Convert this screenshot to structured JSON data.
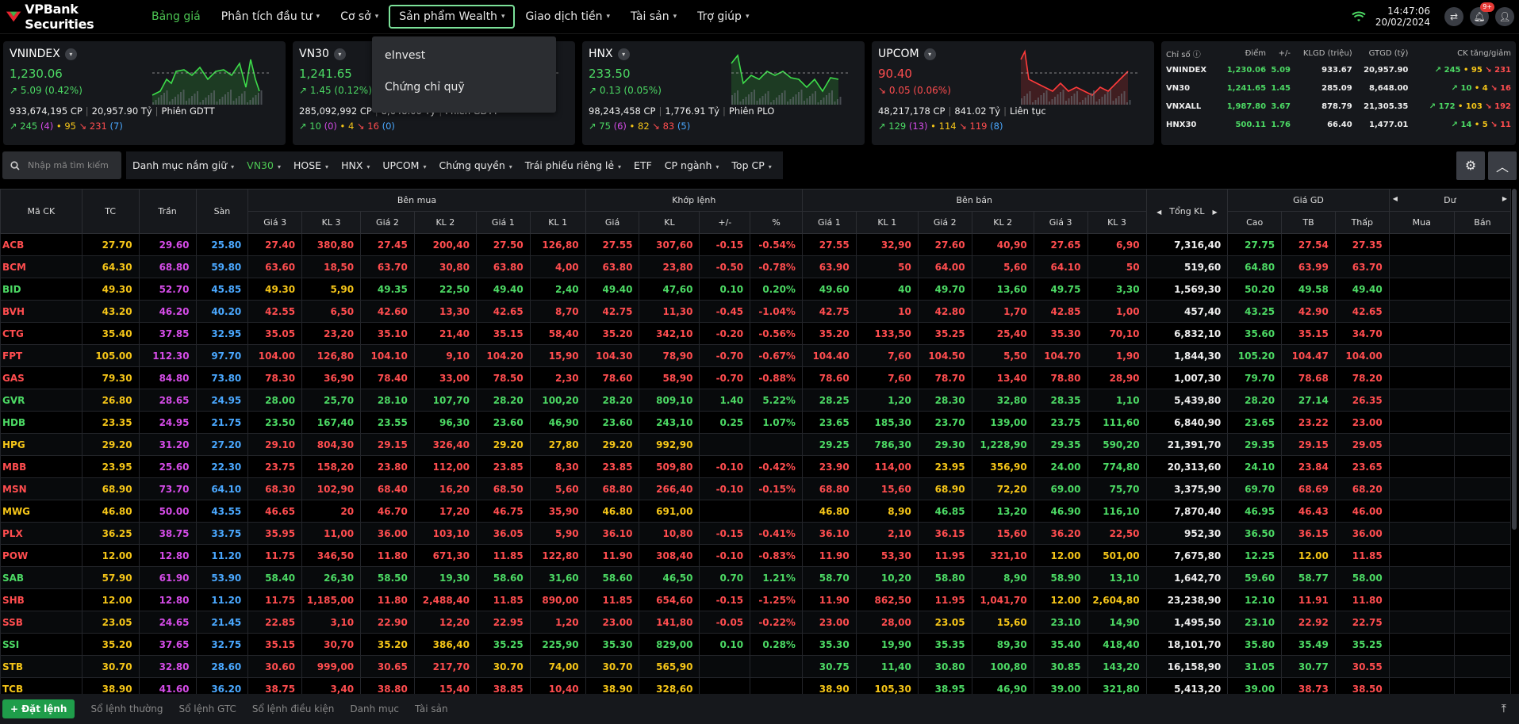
{
  "app": {
    "brand": "VPBank Securities",
    "time": "14:47:06",
    "date": "20/02/2024",
    "notif_badge": "9+"
  },
  "nav": [
    {
      "label": "Bảng giá",
      "active": true,
      "chev": false
    },
    {
      "label": "Phân tích đầu tư",
      "chev": true
    },
    {
      "label": "Cơ sở",
      "chev": true
    },
    {
      "label": "Sản phẩm Wealth",
      "chev": true,
      "open": true
    },
    {
      "label": "Giao dịch tiền",
      "chev": true
    },
    {
      "label": "Tài sản",
      "chev": true
    },
    {
      "label": "Trợ giúp",
      "chev": true
    }
  ],
  "dropdown": [
    "eInvest",
    "Chứng chỉ quỹ"
  ],
  "indices": [
    {
      "name": "VNINDEX",
      "value": "1,230.06",
      "change": "5.09 (0.42%)",
      "dir": "up",
      "vol": "933,674,195 CP",
      "val": "20,957.90 Tỷ",
      "session": "Phiên GDTT",
      "adv": "245",
      "adv_c": "(4)",
      "same": "95",
      "dec": "231",
      "dec_c": "(7)"
    },
    {
      "name": "VN30",
      "value": "1,241.65",
      "change": "1.45 (0.12%)",
      "dir": "up",
      "vol": "285,092,992 CP",
      "val": "8,648.00 Tỷ",
      "session": "Phiên GDTT",
      "adv": "10",
      "adv_c": "(0)",
      "same": "4",
      "dec": "16",
      "dec_c": "(0)"
    },
    {
      "name": "HNX",
      "value": "233.50",
      "change": "0.13 (0.05%)",
      "dir": "up",
      "vol": "98,243,458 CP",
      "val": "1,776.91 Tỷ",
      "session": "Phiên PLO",
      "adv": "75",
      "adv_c": "(6)",
      "same": "82",
      "dec": "83",
      "dec_c": "(5)"
    },
    {
      "name": "UPCOM",
      "value": "90.40",
      "change": "0.05 (0.06%)",
      "dir": "dn",
      "vol": "48,217,178 CP",
      "val": "841.02 Tỷ",
      "session": "Liên tục",
      "adv": "129",
      "adv_c": "(13)",
      "same": "114",
      "dec": "119",
      "dec_c": "(8)"
    }
  ],
  "summary": {
    "headers": [
      "Chỉ số",
      "Điểm",
      "+/-",
      "KLGD (triệu)",
      "GTGD (tỷ)",
      "CK tăng/giảm"
    ],
    "rows": [
      {
        "name": "VNINDEX",
        "point": "1,230.06",
        "chg": "5.09",
        "kl": "933.67",
        "gt": "20,957.90",
        "adv": "245",
        "same": "95",
        "dec": "231"
      },
      {
        "name": "VN30",
        "point": "1,241.65",
        "chg": "1.45",
        "kl": "285.09",
        "gt": "8,648.00",
        "adv": "10",
        "same": "4",
        "dec": "16"
      },
      {
        "name": "VNXALL",
        "point": "1,987.80",
        "chg": "3.67",
        "kl": "878.79",
        "gt": "21,305.35",
        "adv": "172",
        "same": "103",
        "dec": "192"
      },
      {
        "name": "HNX30",
        "point": "500.11",
        "chg": "1.76",
        "kl": "66.40",
        "gt": "1,477.01",
        "adv": "14",
        "same": "5",
        "dec": "11"
      }
    ]
  },
  "search": {
    "placeholder": "Nhập mã tìm kiếm"
  },
  "filters": [
    {
      "label": "Danh mục nắm giữ",
      "chev": true
    },
    {
      "label": "VN30",
      "chev": true,
      "active": true
    },
    {
      "label": "HOSE",
      "chev": true
    },
    {
      "label": "HNX",
      "chev": true
    },
    {
      "label": "UPCOM",
      "chev": true
    },
    {
      "label": "Chứng quyền",
      "chev": true
    },
    {
      "label": "Trái phiếu riêng lẻ",
      "chev": true
    },
    {
      "label": "ETF",
      "chev": false
    },
    {
      "label": "CP ngành",
      "chev": true
    },
    {
      "label": "Top CP",
      "chev": true
    }
  ],
  "board": {
    "groups": {
      "sym": "Mã CK",
      "tc": "TC",
      "ceil": "Trần",
      "floor": "Sàn",
      "buy": "Bên mua",
      "match": "Khớp lệnh",
      "sell": "Bên bán",
      "total": "Tổng KL",
      "price": "Giá GD",
      "foreign": "Dư"
    },
    "sub": [
      "Giá 3",
      "KL 3",
      "Giá 2",
      "KL 2",
      "Giá 1",
      "KL 1",
      "Giá",
      "KL",
      "+/-",
      "%",
      "Giá 1",
      "KL 1",
      "Giá 2",
      "KL 2",
      "Giá 3",
      "KL 3",
      "Cao",
      "TB",
      "Thấp",
      "Mua",
      "Bán"
    ],
    "rows": [
      [
        "ACB",
        "27.70",
        "29.60",
        "25.80",
        "27.40",
        "380,80",
        "27.45",
        "200,40",
        "27.50",
        "126,80",
        "27.55",
        "307,60",
        "-0.15",
        "-0.54%",
        "27.55",
        "32,90",
        "27.60",
        "40,90",
        "27.65",
        "6,90",
        "7,316,40",
        "27.75",
        "27.54",
        "27.35"
      ],
      [
        "BCM",
        "64.30",
        "68.80",
        "59.80",
        "63.60",
        "18,50",
        "63.70",
        "30,80",
        "63.80",
        "4,00",
        "63.80",
        "23,80",
        "-0.50",
        "-0.78%",
        "63.90",
        "50",
        "64.00",
        "5,60",
        "64.10",
        "50",
        "519,60",
        "64.80",
        "63.99",
        "63.70"
      ],
      [
        "BID",
        "49.30",
        "52.70",
        "45.85",
        "49.30",
        "5,90",
        "49.35",
        "22,50",
        "49.40",
        "2,40",
        "49.40",
        "47,60",
        "0.10",
        "0.20%",
        "49.60",
        "40",
        "49.70",
        "13,60",
        "49.75",
        "3,30",
        "1,569,30",
        "50.20",
        "49.58",
        "49.40"
      ],
      [
        "BVH",
        "43.20",
        "46.20",
        "40.20",
        "42.55",
        "6,50",
        "42.60",
        "13,30",
        "42.65",
        "8,70",
        "42.75",
        "11,30",
        "-0.45",
        "-1.04%",
        "42.75",
        "10",
        "42.80",
        "1,70",
        "42.85",
        "1,00",
        "457,40",
        "43.25",
        "42.90",
        "42.65"
      ],
      [
        "CTG",
        "35.40",
        "37.85",
        "32.95",
        "35.05",
        "23,20",
        "35.10",
        "21,40",
        "35.15",
        "58,40",
        "35.20",
        "342,10",
        "-0.20",
        "-0.56%",
        "35.20",
        "133,50",
        "35.25",
        "25,40",
        "35.30",
        "70,10",
        "6,832,10",
        "35.60",
        "35.15",
        "34.70"
      ],
      [
        "FPT",
        "105.00",
        "112.30",
        "97.70",
        "104.00",
        "126,80",
        "104.10",
        "9,10",
        "104.20",
        "15,90",
        "104.30",
        "78,90",
        "-0.70",
        "-0.67%",
        "104.40",
        "7,60",
        "104.50",
        "5,50",
        "104.70",
        "1,90",
        "1,844,30",
        "105.20",
        "104.47",
        "104.00"
      ],
      [
        "GAS",
        "79.30",
        "84.80",
        "73.80",
        "78.30",
        "36,90",
        "78.40",
        "33,00",
        "78.50",
        "2,30",
        "78.60",
        "58,90",
        "-0.70",
        "-0.88%",
        "78.60",
        "7,60",
        "78.70",
        "13,40",
        "78.80",
        "28,90",
        "1,007,30",
        "79.70",
        "78.68",
        "78.20"
      ],
      [
        "GVR",
        "26.80",
        "28.65",
        "24.95",
        "28.00",
        "25,70",
        "28.10",
        "107,70",
        "28.20",
        "100,20",
        "28.20",
        "809,10",
        "1.40",
        "5.22%",
        "28.25",
        "1,20",
        "28.30",
        "32,80",
        "28.35",
        "1,10",
        "5,439,80",
        "28.20",
        "27.14",
        "26.35"
      ],
      [
        "HDB",
        "23.35",
        "24.95",
        "21.75",
        "23.50",
        "167,40",
        "23.55",
        "96,30",
        "23.60",
        "46,90",
        "23.60",
        "243,10",
        "0.25",
        "1.07%",
        "23.65",
        "185,30",
        "23.70",
        "139,00",
        "23.75",
        "111,60",
        "6,840,90",
        "23.65",
        "23.22",
        "23.00"
      ],
      [
        "HPG",
        "29.20",
        "31.20",
        "27.20",
        "29.10",
        "804,30",
        "29.15",
        "326,40",
        "29.20",
        "27,80",
        "29.20",
        "992,90",
        "",
        "",
        "29.25",
        "786,30",
        "29.30",
        "1,228,90",
        "29.35",
        "590,20",
        "21,391,70",
        "29.35",
        "29.15",
        "29.05"
      ],
      [
        "MBB",
        "23.95",
        "25.60",
        "22.30",
        "23.75",
        "158,20",
        "23.80",
        "112,00",
        "23.85",
        "8,30",
        "23.85",
        "509,80",
        "-0.10",
        "-0.42%",
        "23.90",
        "114,00",
        "23.95",
        "356,90",
        "24.00",
        "774,80",
        "20,313,60",
        "24.10",
        "23.84",
        "23.65"
      ],
      [
        "MSN",
        "68.90",
        "73.70",
        "64.10",
        "68.30",
        "102,90",
        "68.40",
        "16,20",
        "68.50",
        "5,60",
        "68.80",
        "266,40",
        "-0.10",
        "-0.15%",
        "68.80",
        "15,60",
        "68.90",
        "72,20",
        "69.00",
        "75,70",
        "3,375,90",
        "69.70",
        "68.69",
        "68.20"
      ],
      [
        "MWG",
        "46.80",
        "50.00",
        "43.55",
        "46.65",
        "20",
        "46.70",
        "17,20",
        "46.75",
        "35,90",
        "46.80",
        "691,00",
        "",
        "",
        "46.80",
        "8,90",
        "46.85",
        "13,20",
        "46.90",
        "116,10",
        "7,870,40",
        "46.95",
        "46.43",
        "46.00"
      ],
      [
        "PLX",
        "36.25",
        "38.75",
        "33.75",
        "35.95",
        "11,00",
        "36.00",
        "103,10",
        "36.05",
        "5,90",
        "36.10",
        "10,80",
        "-0.15",
        "-0.41%",
        "36.10",
        "2,10",
        "36.15",
        "15,60",
        "36.20",
        "22,50",
        "952,30",
        "36.50",
        "36.15",
        "36.00"
      ],
      [
        "POW",
        "12.00",
        "12.80",
        "11.20",
        "11.75",
        "346,50",
        "11.80",
        "671,30",
        "11.85",
        "122,80",
        "11.90",
        "308,40",
        "-0.10",
        "-0.83%",
        "11.90",
        "53,30",
        "11.95",
        "321,10",
        "12.00",
        "501,00",
        "7,675,80",
        "12.25",
        "12.00",
        "11.85"
      ],
      [
        "SAB",
        "57.90",
        "61.90",
        "53.90",
        "58.40",
        "26,30",
        "58.50",
        "19,30",
        "58.60",
        "31,60",
        "58.60",
        "46,50",
        "0.70",
        "1.21%",
        "58.70",
        "10,20",
        "58.80",
        "8,90",
        "58.90",
        "13,10",
        "1,642,70",
        "59.60",
        "58.77",
        "58.00"
      ],
      [
        "SHB",
        "12.00",
        "12.80",
        "11.20",
        "11.75",
        "1,185,00",
        "11.80",
        "2,488,40",
        "11.85",
        "890,00",
        "11.85",
        "654,60",
        "-0.15",
        "-1.25%",
        "11.90",
        "862,50",
        "11.95",
        "1,041,70",
        "12.00",
        "2,604,80",
        "23,238,90",
        "12.10",
        "11.91",
        "11.80"
      ],
      [
        "SSB",
        "23.05",
        "24.65",
        "21.45",
        "22.85",
        "3,10",
        "22.90",
        "12,20",
        "22.95",
        "1,20",
        "23.00",
        "141,80",
        "-0.05",
        "-0.22%",
        "23.00",
        "28,00",
        "23.05",
        "15,60",
        "23.10",
        "14,90",
        "1,495,50",
        "23.10",
        "22.92",
        "22.75"
      ],
      [
        "SSI",
        "35.20",
        "37.65",
        "32.75",
        "35.15",
        "30,70",
        "35.20",
        "386,40",
        "35.25",
        "225,90",
        "35.30",
        "829,00",
        "0.10",
        "0.28%",
        "35.30",
        "19,90",
        "35.35",
        "89,30",
        "35.40",
        "418,40",
        "18,101,70",
        "35.80",
        "35.49",
        "35.25"
      ],
      [
        "STB",
        "30.70",
        "32.80",
        "28.60",
        "30.60",
        "999,00",
        "30.65",
        "217,70",
        "30.70",
        "74,00",
        "30.70",
        "565,90",
        "",
        "",
        "30.75",
        "11,40",
        "30.80",
        "100,80",
        "30.85",
        "143,20",
        "16,158,90",
        "31.05",
        "30.77",
        "30.55"
      ],
      [
        "TCB",
        "38.90",
        "41.60",
        "36.20",
        "38.75",
        "3,40",
        "38.80",
        "15,40",
        "38.85",
        "10,40",
        "38.90",
        "328,60",
        "",
        "",
        "38.90",
        "105,30",
        "38.95",
        "46,90",
        "39.00",
        "321,80",
        "5,413,20",
        "39.00",
        "38.73",
        "38.50"
      ]
    ]
  },
  "bottom": {
    "order": "Đặt lệnh",
    "tabs": [
      "Sổ lệnh thường",
      "Sổ lệnh GTC",
      "Sổ lệnh điều kiện",
      "Danh mục",
      "Tài sản"
    ]
  },
  "colors": {
    "up": "#4cd964",
    "down": "#ff4d4f",
    "ref": "#f5c518",
    "ceil": "#d54ce8",
    "floor": "#4aa8ff"
  }
}
